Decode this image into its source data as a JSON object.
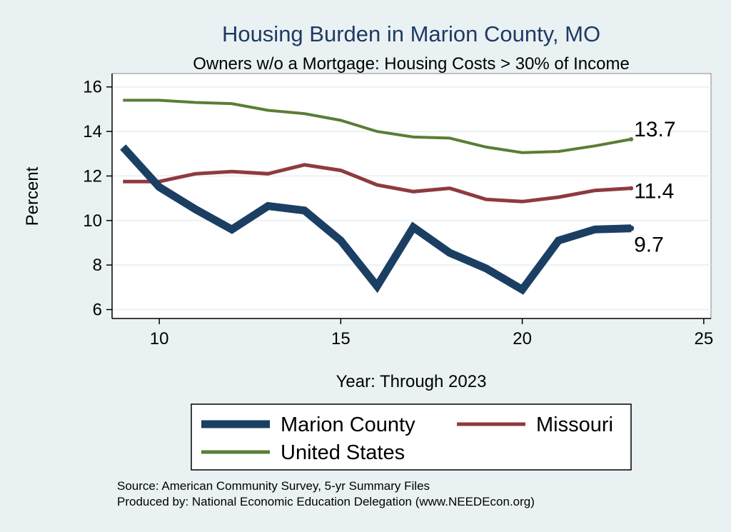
{
  "chart_data": {
    "type": "line",
    "title": "Housing Burden in Marion County, MO",
    "subtitle": "Owners w/o a Mortgage: Housing Costs > 30% of Income",
    "xlabel": "Year: Through 2023",
    "ylabel": "Percent",
    "xlim": [
      8.7,
      25.2
    ],
    "ylim": [
      5.6,
      16.6
    ],
    "xticks": [
      10,
      15,
      20,
      25
    ],
    "yticks": [
      6,
      8,
      10,
      12,
      14,
      16
    ],
    "x": [
      9,
      10,
      11,
      12,
      13,
      14,
      15,
      16,
      17,
      18,
      19,
      20,
      21,
      22,
      23
    ],
    "series": [
      {
        "name": "Marion County",
        "color": "#1b3f63",
        "values": [
          13.3,
          11.5,
          10.5,
          9.6,
          10.65,
          10.45,
          9.1,
          7.05,
          9.7,
          8.55,
          7.85,
          6.9,
          9.1,
          9.6,
          9.65
        ],
        "end_label": "9.7"
      },
      {
        "name": "Missouri",
        "color": "#8e3a3f",
        "values": [
          11.75,
          11.75,
          12.1,
          12.2,
          12.1,
          12.5,
          12.25,
          11.6,
          11.3,
          11.45,
          10.95,
          10.85,
          11.05,
          11.35,
          11.45
        ],
        "end_label": "11.4"
      },
      {
        "name": "United States",
        "color": "#5a7d34",
        "values": [
          15.4,
          15.4,
          15.3,
          15.25,
          14.95,
          14.8,
          14.5,
          14.0,
          13.75,
          13.7,
          13.3,
          13.05,
          13.1,
          13.35,
          13.65
        ],
        "end_label": "13.7"
      }
    ],
    "legend": [
      "Marion County",
      "Missouri",
      "United States"
    ],
    "legend_position": "bottom",
    "grid": true
  },
  "footer": {
    "source": "Source: American Community Survey, 5-yr Summary Files",
    "producer": "Produced by: National Economic Education Delegation (www.NEEDEcon.org)"
  }
}
